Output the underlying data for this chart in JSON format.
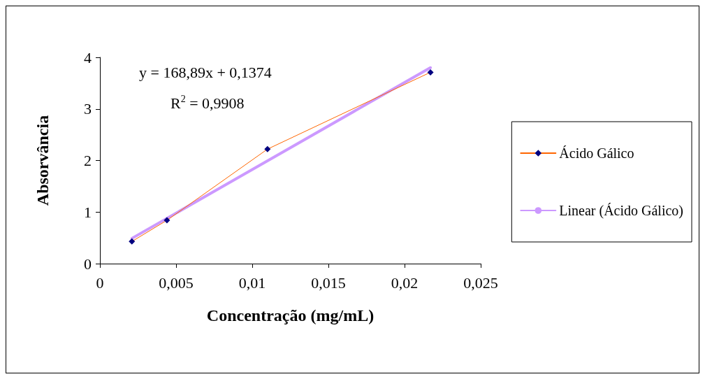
{
  "chart_data": {
    "type": "line",
    "xlabel": "Concentração (mg/mL)",
    "ylabel": "Absorvância",
    "xlim": [
      0,
      0.025
    ],
    "xticks": [
      0,
      {
        "value": 0.005,
        "label": "0,005"
      },
      {
        "value": 0.01,
        "label": "0,01"
      },
      {
        "value": 0.015,
        "label": "0,015"
      },
      {
        "value": 0.02,
        "label": "0,02"
      },
      {
        "value": 0.025,
        "label": "0,025"
      }
    ],
    "ylim": [
      0,
      4
    ],
    "yticks": [
      0,
      1,
      2,
      3,
      4
    ],
    "grid": false,
    "legend": "right",
    "annotations": [
      "y = 168,89x + 0,1374",
      "R$^{2}$ = 0,9908"
    ],
    "series": [
      {
        "name": "Ácido Gálico",
        "color": "#ff6600",
        "colors": [
          "#000080",
          "#000080",
          "#000080",
          "#000080"
        ],
        "marker": "diamond",
        "x": [
          0.0021,
          0.0044,
          0.011,
          0.0217
        ],
        "values": [
          0.43,
          0.84,
          2.22,
          3.71
        ]
      },
      {
        "name": "Linear (Ácido Gálico)",
        "type": "line",
        "color": "#cc99ff",
        "marker": "none",
        "x": [
          0.0021,
          0.0217
        ],
        "values": [
          0.49,
          3.8
        ]
      }
    ]
  }
}
